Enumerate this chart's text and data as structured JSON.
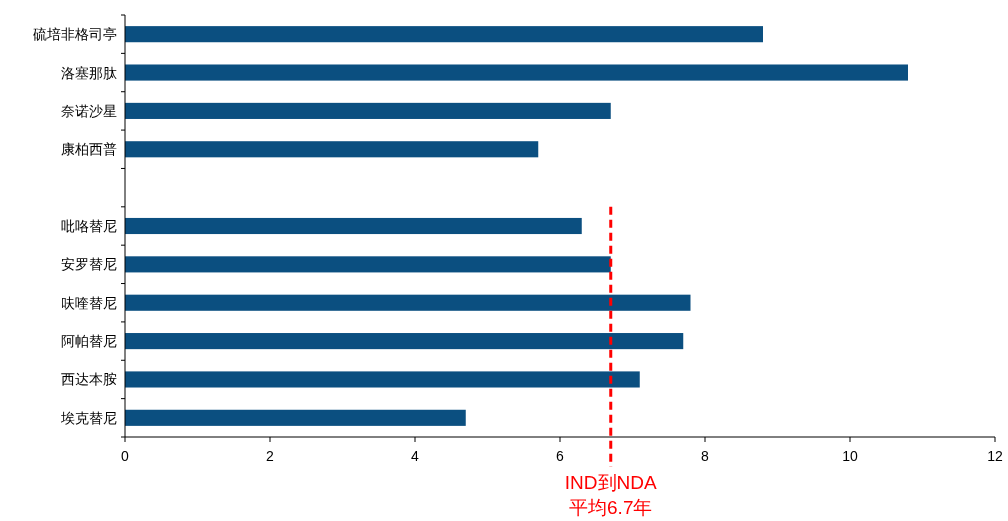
{
  "chart_data": {
    "type": "bar",
    "orientation": "horizontal",
    "categories": [
      "硫培非格司亭",
      "洛塞那肽",
      "奈诺沙星",
      "康柏西普",
      null,
      "吡咯替尼",
      "安罗替尼",
      "呋喹替尼",
      "阿帕替尼",
      "西达本胺",
      "埃克替尼"
    ],
    "values": [
      8.8,
      10.8,
      6.7,
      5.7,
      null,
      6.3,
      6.7,
      7.8,
      7.7,
      7.1,
      4.7
    ],
    "color": "#0b4f80",
    "xlim": [
      0,
      12
    ],
    "xticks": [
      0,
      2,
      4,
      6,
      8,
      10,
      12
    ],
    "grid": false,
    "ref_lines": [
      {
        "axis": "x",
        "value": 6.7,
        "label": "IND到NDA\n平均6.7年",
        "color": "#ff0000",
        "line_style": "dashed"
      }
    ]
  }
}
